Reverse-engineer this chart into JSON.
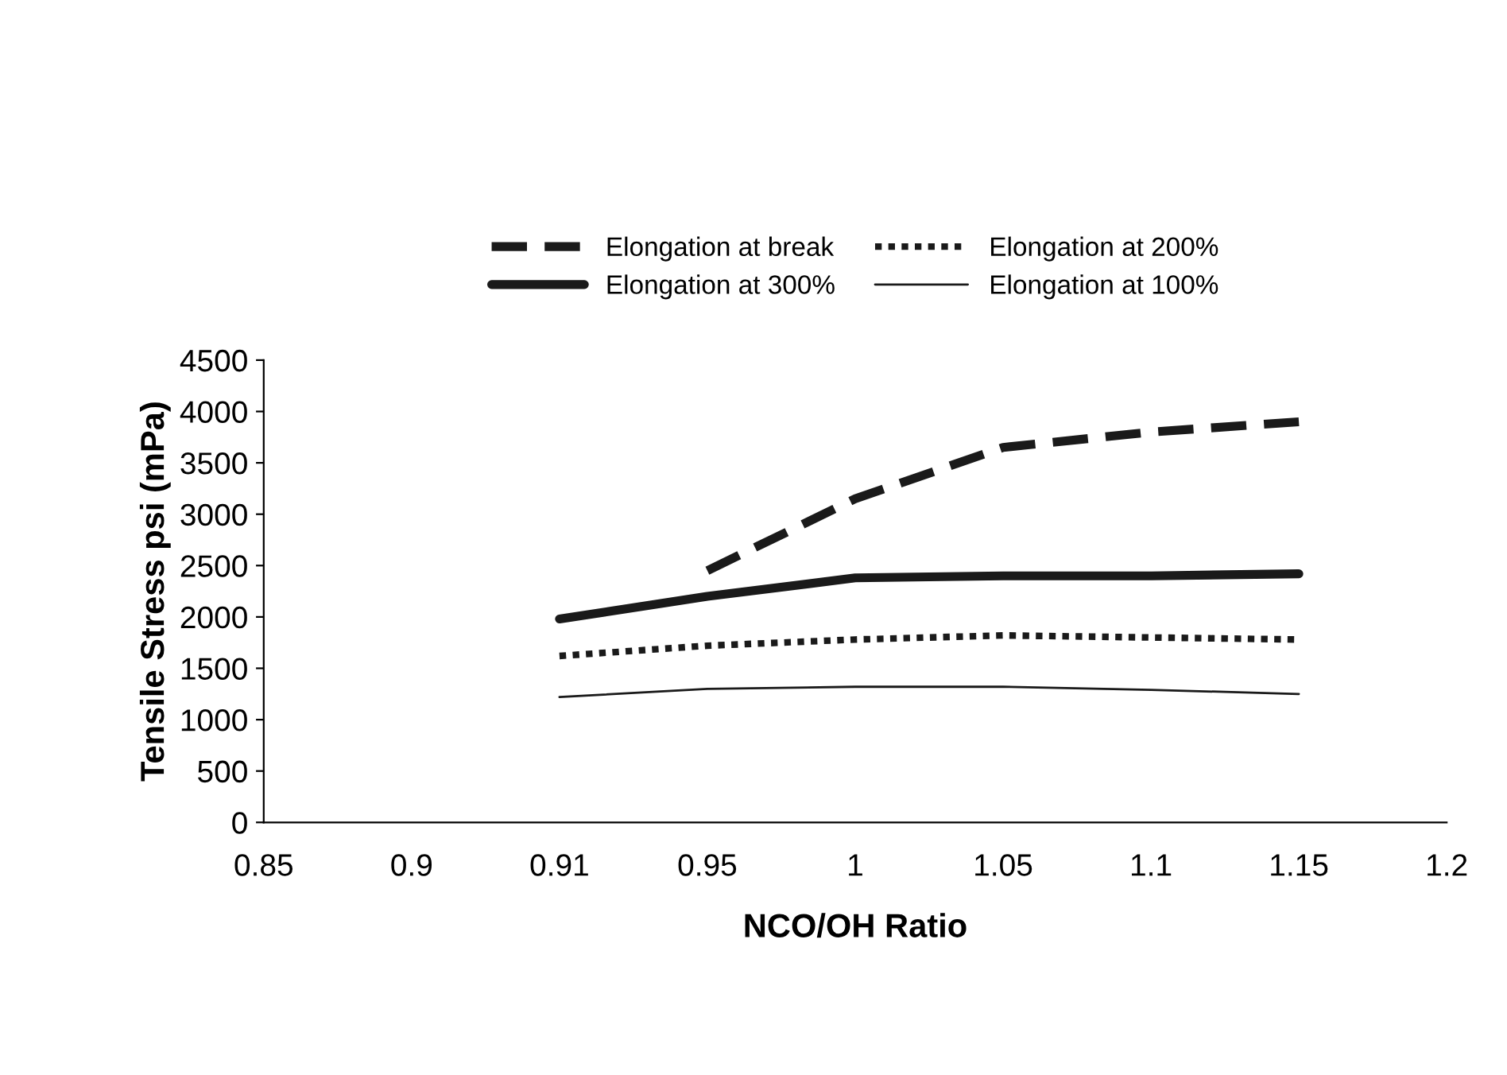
{
  "chart_data": {
    "type": "line",
    "xlabel": "NCO/OH Ratio",
    "ylabel": "Tensile Stress psi (mPa)",
    "categories": [
      "0.85",
      "0.9",
      "0.91",
      "0.95",
      "1",
      "1.05",
      "1.1",
      "1.15",
      "1.2"
    ],
    "series": [
      {
        "name": "Elongation at break",
        "color": "#1a1a1a",
        "line_style": "dashed",
        "values": [
          null,
          null,
          null,
          2450,
          3150,
          3650,
          3800,
          3900,
          null
        ]
      },
      {
        "name": "Elongation at 300%",
        "color": "#1a1a1a",
        "line_style": "solid",
        "values": [
          null,
          null,
          1980,
          2200,
          2380,
          2400,
          2400,
          2420,
          null
        ]
      },
      {
        "name": "Elongation at 200%",
        "color": "#1a1a1a",
        "line_style": "dotted",
        "values": [
          null,
          null,
          1620,
          1720,
          1780,
          1820,
          1800,
          1780,
          null
        ]
      },
      {
        "name": "Elongation at 100%",
        "color": "#1a1a1a",
        "line_style": "solid",
        "values": [
          null,
          null,
          1220,
          1300,
          1320,
          1320,
          1290,
          1250,
          null
        ]
      }
    ],
    "ylim": [
      0,
      4500
    ],
    "yticks": [
      0,
      500,
      1000,
      1500,
      2000,
      2500,
      3000,
      3500,
      4000,
      4500
    ],
    "grid": false,
    "legend": "top",
    "marker": "none"
  }
}
